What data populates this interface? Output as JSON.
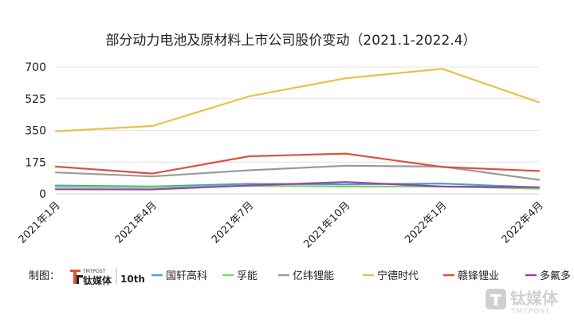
{
  "chart_data": {
    "type": "line",
    "title": "部分动力电池及原材料上市公司股价变动（2021.1-2022.4）",
    "categories": [
      "2021年1月",
      "2021年4月",
      "2021年7月",
      "2021年10月",
      "2022年1月",
      "2022年4月"
    ],
    "ylim": [
      0,
      700
    ],
    "yticks": [
      0,
      175,
      350,
      525,
      700
    ],
    "ytick_labels": [
      "0",
      "175",
      "350",
      "525",
      "700"
    ],
    "xlabel": "",
    "ylabel": "",
    "grid": "horizontal",
    "legend": "bottom",
    "series": [
      {
        "name": "国轩高科",
        "color": "#4aa3c9",
        "values": [
          46,
          40,
          55,
          52,
          57,
          35
        ]
      },
      {
        "name": "孚能",
        "color": "#7ed36c",
        "values": [
          38,
          36,
          44,
          40,
          40,
          28
        ]
      },
      {
        "name": "亿纬锂能",
        "color": "#9b9b9b",
        "values": [
          118,
          96,
          130,
          155,
          150,
          77
        ]
      },
      {
        "name": "宁德时代",
        "color": "#e8c14e",
        "values": [
          345,
          374,
          538,
          638,
          690,
          505
        ]
      },
      {
        "name": "赣锋锂业",
        "color": "#d9533c",
        "values": [
          150,
          112,
          207,
          222,
          148,
          126
        ]
      },
      {
        "name": "多氟多",
        "color": "#a040a0",
        "values": [
          25,
          24,
          46,
          65,
          40,
          36
        ]
      }
    ]
  },
  "legend": {
    "prefix": "制图："
  },
  "brand": {
    "logo_small": "TMTPOST",
    "logo_name": "钛媒体",
    "anniversary": "10th",
    "watermark_name": "钛媒体",
    "watermark_sub": "TMTPOST"
  }
}
